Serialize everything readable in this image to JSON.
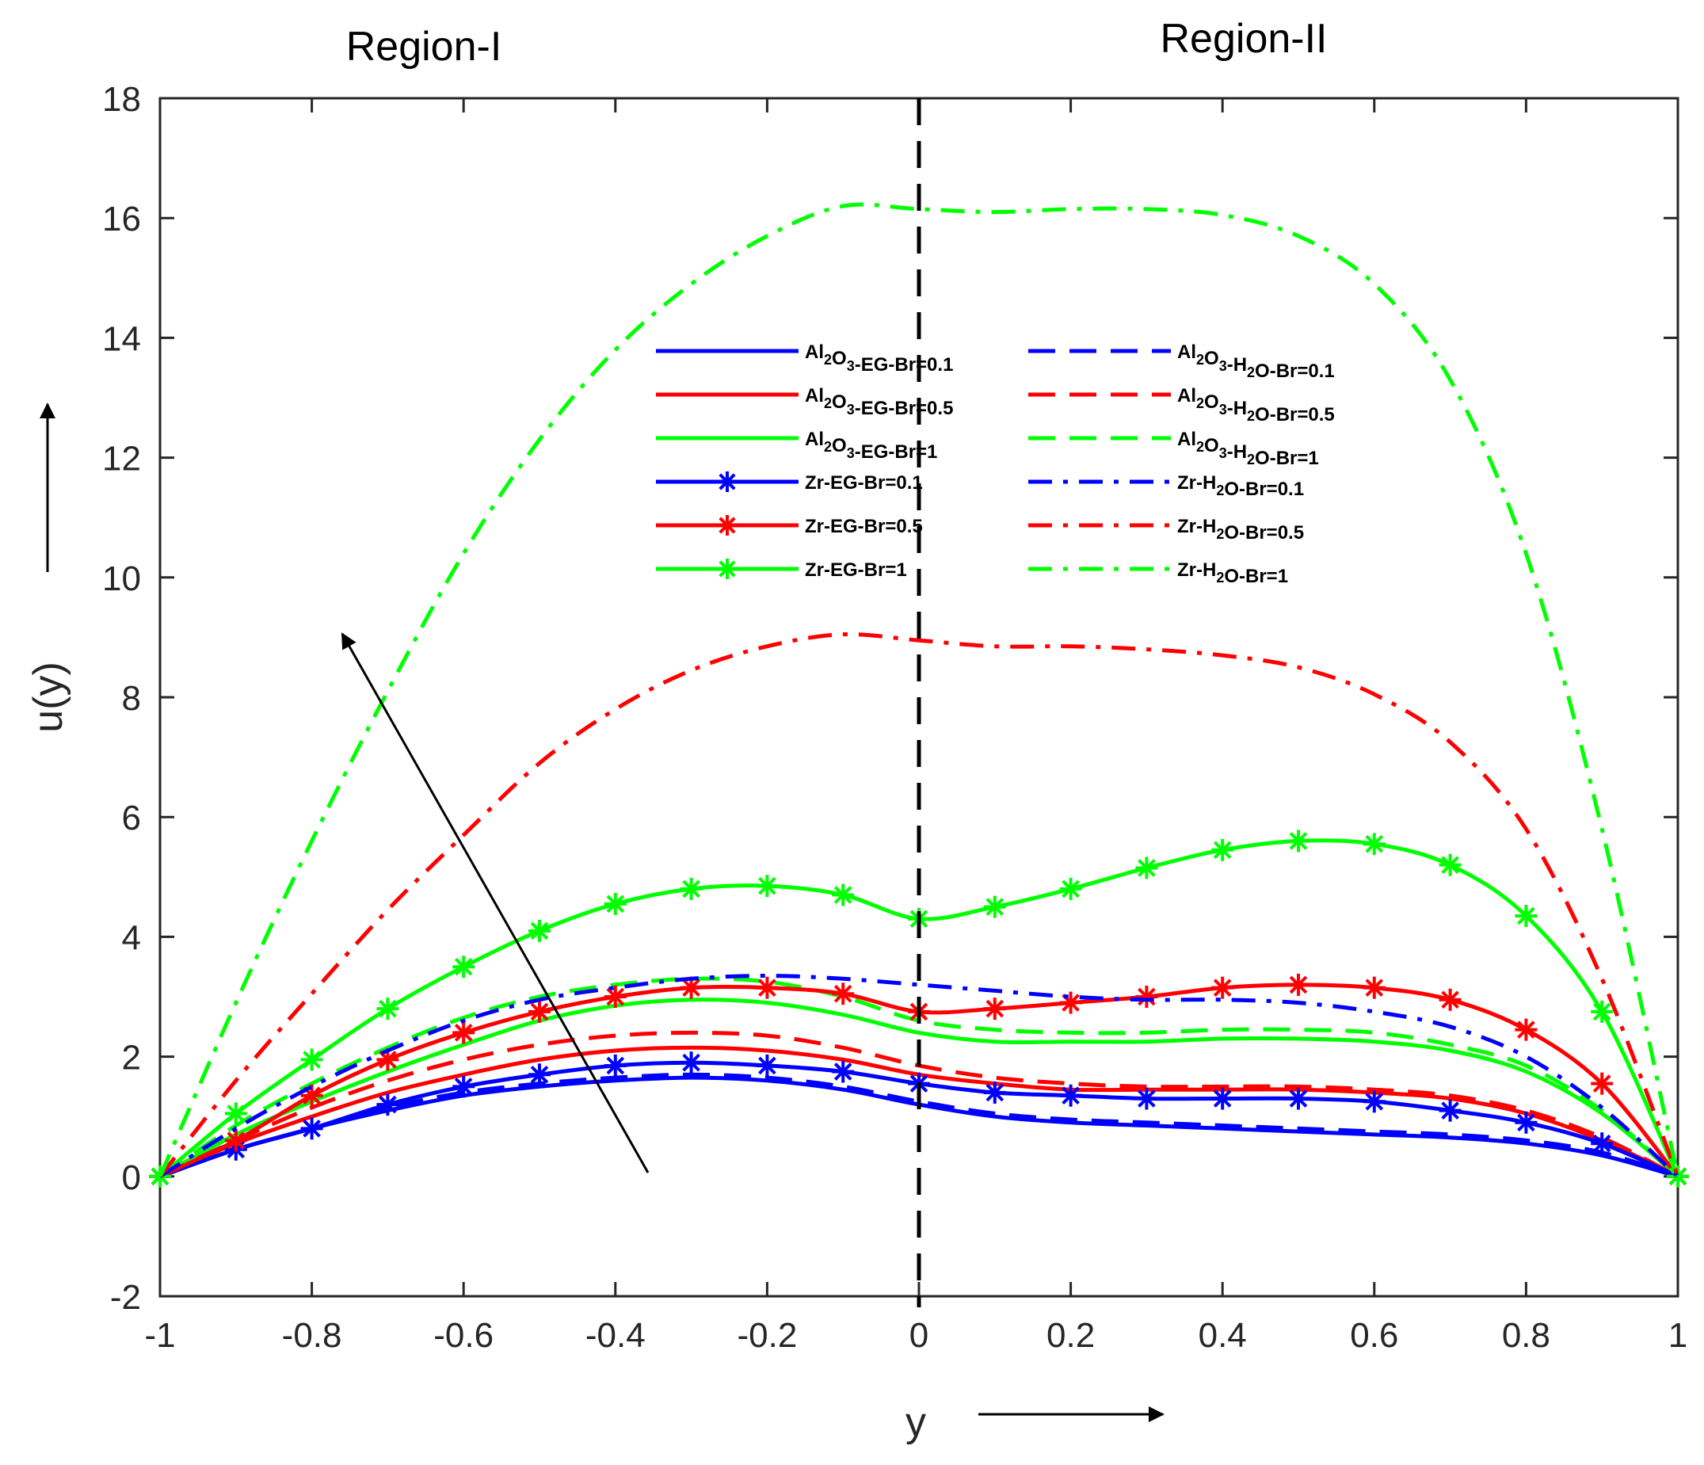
{
  "chart_data": {
    "type": "line",
    "title": "",
    "xlabel": "y",
    "ylabel": "u(y)",
    "xlim": [
      -1,
      1
    ],
    "ylim": [
      -2,
      18
    ],
    "xticks": [
      -1,
      -0.8,
      -0.6,
      -0.4,
      -0.2,
      0,
      0.2,
      0.4,
      0.6,
      0.8,
      1
    ],
    "xtick_labels": [
      "-1",
      "-0.8",
      "-0.6",
      "-0.4",
      "-0.2",
      "0",
      "0.2",
      "0.4",
      "0.6",
      "0.8",
      "1"
    ],
    "yticks": [
      -2,
      0,
      2,
      4,
      6,
      8,
      10,
      12,
      14,
      16,
      18
    ],
    "ytick_labels": [
      "-2",
      "0",
      "2",
      "4",
      "6",
      "8",
      "10",
      "12",
      "14",
      "16",
      "18"
    ],
    "grid": false,
    "legend_position": "upper-center, two columns",
    "annotations": {
      "region_left": "Region-I",
      "region_right": "Region-II",
      "divider_x": 0
    },
    "x": [
      -1,
      -0.9,
      -0.8,
      -0.7,
      -0.6,
      -0.5,
      -0.4,
      -0.3,
      -0.2,
      -0.1,
      0,
      0.1,
      0.2,
      0.3,
      0.4,
      0.5,
      0.6,
      0.7,
      0.8,
      0.9,
      1
    ],
    "series": [
      {
        "name": "Al2O3-EG-Br=0.1",
        "color": "#0000ff",
        "style": "solid",
        "marker": "none",
        "values": [
          0,
          0.45,
          0.8,
          1.1,
          1.35,
          1.5,
          1.6,
          1.65,
          1.6,
          1.45,
          1.2,
          1.0,
          0.9,
          0.85,
          0.8,
          0.75,
          0.7,
          0.65,
          0.55,
          0.35,
          0
        ]
      },
      {
        "name": "Al2O3-EG-Br=0.5",
        "color": "#ff0000",
        "style": "solid",
        "marker": "none",
        "values": [
          0,
          0.55,
          1.0,
          1.4,
          1.7,
          1.95,
          2.1,
          2.15,
          2.1,
          1.95,
          1.7,
          1.55,
          1.45,
          1.45,
          1.45,
          1.45,
          1.4,
          1.3,
          1.05,
          0.6,
          0
        ]
      },
      {
        "name": "Al2O3-EG-Br=1",
        "color": "#00ff00",
        "style": "solid",
        "marker": "none",
        "values": [
          0,
          0.7,
          1.25,
          1.75,
          2.2,
          2.6,
          2.85,
          2.95,
          2.9,
          2.7,
          2.4,
          2.25,
          2.25,
          2.25,
          2.3,
          2.3,
          2.25,
          2.1,
          1.75,
          1.05,
          0
        ]
      },
      {
        "name": "Al2O3-H2O-Br=0.1",
        "color": "#0000ff",
        "style": "dashed",
        "marker": "none",
        "values": [
          0,
          0.45,
          0.8,
          1.15,
          1.4,
          1.55,
          1.65,
          1.7,
          1.65,
          1.5,
          1.25,
          1.05,
          0.95,
          0.9,
          0.85,
          0.8,
          0.75,
          0.7,
          0.6,
          0.4,
          0
        ]
      },
      {
        "name": "Al2O3-H2O-Br=0.5",
        "color": "#ff0000",
        "style": "dashed",
        "marker": "none",
        "values": [
          0,
          0.6,
          1.15,
          1.6,
          1.95,
          2.2,
          2.35,
          2.4,
          2.35,
          2.15,
          1.85,
          1.65,
          1.55,
          1.5,
          1.5,
          1.5,
          1.45,
          1.35,
          1.1,
          0.65,
          0
        ]
      },
      {
        "name": "Al2O3-H2O-Br=1",
        "color": "#00ff00",
        "style": "dashed",
        "marker": "none",
        "values": [
          0,
          0.85,
          1.55,
          2.15,
          2.65,
          3.0,
          3.2,
          3.3,
          3.25,
          3.0,
          2.6,
          2.45,
          2.4,
          2.4,
          2.45,
          2.45,
          2.4,
          2.2,
          1.85,
          1.1,
          0
        ]
      },
      {
        "name": "Zr-EG-Br=0.1",
        "color": "#0000ff",
        "style": "solid",
        "marker": "asterisk",
        "values": [
          0,
          0.45,
          0.8,
          1.2,
          1.5,
          1.7,
          1.85,
          1.9,
          1.85,
          1.75,
          1.55,
          1.4,
          1.35,
          1.3,
          1.3,
          1.3,
          1.25,
          1.1,
          0.9,
          0.55,
          0
        ]
      },
      {
        "name": "Zr-EG-Br=0.5",
        "color": "#ff0000",
        "style": "solid",
        "marker": "asterisk",
        "values": [
          0,
          0.6,
          1.35,
          1.95,
          2.4,
          2.75,
          3.0,
          3.15,
          3.15,
          3.05,
          2.75,
          2.8,
          2.9,
          3.0,
          3.15,
          3.2,
          3.15,
          2.95,
          2.45,
          1.55,
          0
        ]
      },
      {
        "name": "Zr-EG-Br=1",
        "color": "#00ff00",
        "style": "solid",
        "marker": "asterisk",
        "values": [
          0,
          1.05,
          1.95,
          2.8,
          3.5,
          4.1,
          4.55,
          4.8,
          4.85,
          4.7,
          4.3,
          4.5,
          4.8,
          5.15,
          5.45,
          5.6,
          5.55,
          5.2,
          4.35,
          2.75,
          0
        ]
      },
      {
        "name": "Zr-H2O-Br=0.1",
        "color": "#0000ff",
        "style": "dashdot",
        "marker": "none",
        "values": [
          0,
          0.8,
          1.5,
          2.1,
          2.6,
          2.95,
          3.15,
          3.3,
          3.35,
          3.3,
          3.2,
          3.1,
          3.0,
          2.95,
          2.95,
          2.9,
          2.75,
          2.5,
          2.0,
          1.15,
          0
        ]
      },
      {
        "name": "Zr-H2O-Br=0.5",
        "color": "#ff0000",
        "style": "dashdot",
        "marker": "none",
        "values": [
          0,
          1.6,
          3.05,
          4.45,
          5.7,
          6.9,
          7.8,
          8.45,
          8.85,
          9.05,
          8.95,
          8.85,
          8.85,
          8.8,
          8.7,
          8.5,
          8.05,
          7.25,
          5.8,
          3.3,
          0
        ]
      },
      {
        "name": "Zr-H2O-Br=1",
        "color": "#00ff00",
        "style": "dashdot",
        "marker": "none",
        "values": [
          0,
          2.9,
          5.6,
          8.1,
          10.4,
          12.3,
          13.8,
          14.9,
          15.7,
          16.2,
          16.15,
          16.1,
          16.15,
          16.15,
          16.05,
          15.7,
          14.9,
          13.3,
          10.4,
          5.8,
          0
        ]
      }
    ],
    "legend": {
      "left": [
        {
          "formula": [
            "Al",
            "2",
            "O",
            "3",
            "-EG-Br=0.1"
          ],
          "series": 0
        },
        {
          "formula": [
            "Al",
            "2",
            "O",
            "3",
            "-EG-Br=0.5"
          ],
          "series": 1
        },
        {
          "formula": [
            "Al",
            "2",
            "O",
            "3",
            "-EG-Br=1"
          ],
          "series": 2
        },
        {
          "formula": [
            "Zr-EG-Br=0.1"
          ],
          "series": 6
        },
        {
          "formula": [
            "Zr-EG-Br=0.5"
          ],
          "series": 7
        },
        {
          "formula": [
            "Zr-EG-Br=1"
          ],
          "series": 8
        }
      ],
      "right": [
        {
          "formula": [
            "Al",
            "2",
            "O",
            "3",
            "-H",
            "2",
            "O-Br=0.1"
          ],
          "series": 3
        },
        {
          "formula": [
            "Al",
            "2",
            "O",
            "3",
            "-H",
            "2",
            "O-Br=0.5"
          ],
          "series": 4
        },
        {
          "formula": [
            "Al",
            "2",
            "O",
            "3",
            "-H",
            "2",
            "O-Br=1"
          ],
          "series": 5
        },
        {
          "formula": [
            "Zr-H",
            "2",
            "O-Br=0.1"
          ],
          "series": 9
        },
        {
          "formula": [
            "Zr-H",
            "2",
            "O-Br=0.5"
          ],
          "series": 10
        },
        {
          "formula": [
            "Zr-H",
            "2",
            "O-Br=1"
          ],
          "series": 11
        }
      ]
    }
  }
}
